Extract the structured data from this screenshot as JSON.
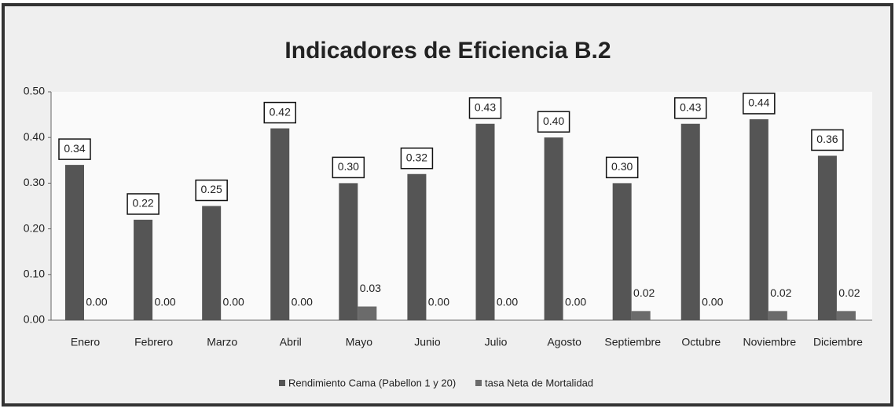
{
  "chart_data": {
    "type": "bar",
    "title": "Indicadores de Eficiencia B.2",
    "categories": [
      "Enero",
      "Febrero",
      "Marzo",
      "Abril",
      "Mayo",
      "Junio",
      "Julio",
      "Agosto",
      "Septiembre",
      "Octubre",
      "Noviembre",
      "Diciembre"
    ],
    "series": [
      {
        "name": "Rendimiento Cama (Pabellon 1 y 20)",
        "color": "#555555",
        "values": [
          0.34,
          0.22,
          0.25,
          0.42,
          0.3,
          0.32,
          0.43,
          0.4,
          0.3,
          0.43,
          0.44,
          0.36
        ],
        "value_labels": [
          "0.34",
          "0.22",
          "0.25",
          "0.42",
          "0.30",
          "0.32",
          "0.43",
          "0.40",
          "0.30",
          "0.43",
          "0.44",
          "0.36"
        ]
      },
      {
        "name": "tasa Neta de Mortalidad",
        "color": "#6b6b6b",
        "values": [
          0,
          0,
          0,
          0,
          0.03,
          0,
          0,
          0,
          0.02,
          0,
          0.02,
          0.02
        ],
        "value_labels": [
          "0.00",
          "0.00",
          "0.00",
          "0.00",
          "0.03",
          "0.00",
          "0.00",
          "0.00",
          "0.02",
          "0.00",
          "0.02",
          "0.02"
        ]
      }
    ],
    "ylim": [
      0,
      0.5
    ],
    "yticks": [
      {
        "value": 0,
        "label": "0.00"
      },
      {
        "value": 0.1,
        "label": "0.10"
      },
      {
        "value": 0.2,
        "label": "0.20"
      },
      {
        "value": 0.3,
        "label": "0.30"
      },
      {
        "value": 0.4,
        "label": "0.40"
      },
      {
        "value": 0.5,
        "label": "0.50"
      }
    ],
    "legend": "bottom"
  }
}
